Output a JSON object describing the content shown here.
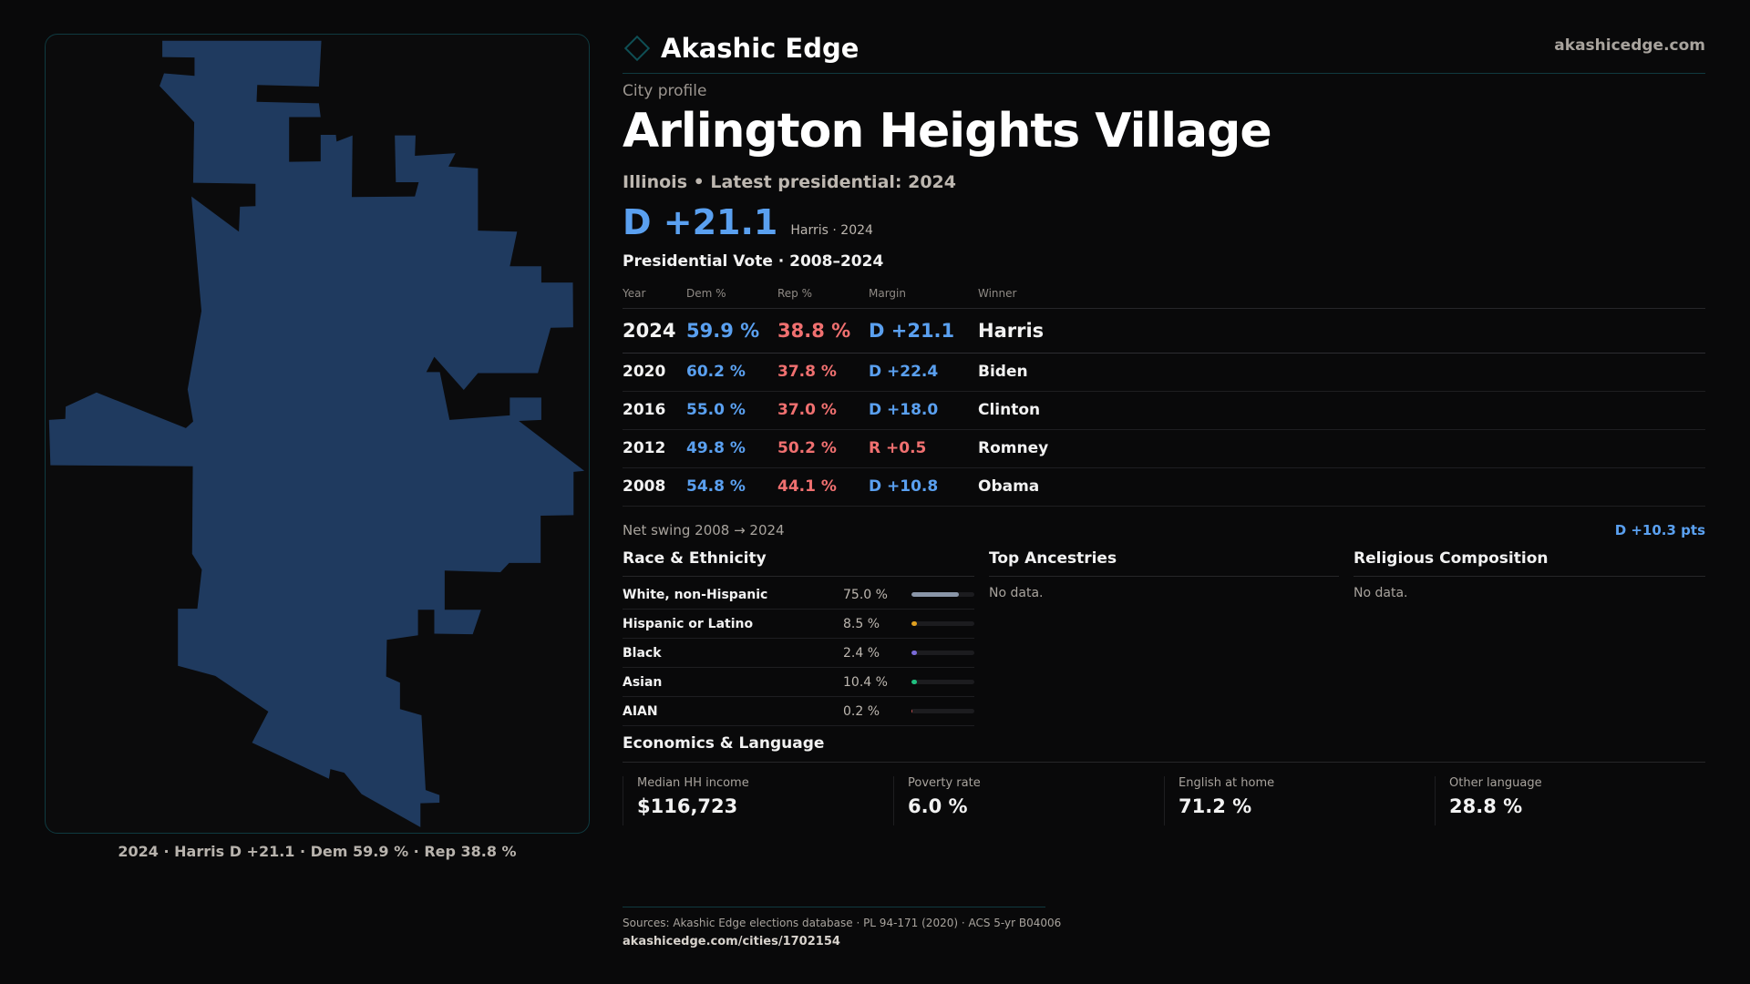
{
  "map": {
    "fill": "#1f3a5f",
    "caption": "2024 · Harris D +21.1 · Dem 59.9 % · Rep 38.8 %"
  },
  "header": {
    "brand": "Akashic Edge",
    "site": "akashicedge.com",
    "logo_icon": "diamond-icon"
  },
  "profile": {
    "kicker": "City profile",
    "title": "Arlington Heights Village",
    "subtitle": "Illinois • Latest presidential: 2024",
    "margin": "D +21.1",
    "margin_note": "Harris · 2024"
  },
  "votes": {
    "title": "Presidential Vote · 2008–2024",
    "headers": [
      "Year",
      "Dem %",
      "Rep %",
      "Margin",
      "Winner"
    ],
    "rows": [
      {
        "year": "2024",
        "dem": "59.9 %",
        "rep": "38.8 %",
        "margin": "D +21.1",
        "winner": "Harris",
        "party": "D"
      },
      {
        "year": "2020",
        "dem": "60.2 %",
        "rep": "37.8 %",
        "margin": "D +22.4",
        "winner": "Biden",
        "party": "D"
      },
      {
        "year": "2016",
        "dem": "55.0 %",
        "rep": "37.0 %",
        "margin": "D +18.0",
        "winner": "Clinton",
        "party": "D"
      },
      {
        "year": "2012",
        "dem": "49.8 %",
        "rep": "50.2 %",
        "margin": "R +0.5",
        "winner": "Romney",
        "party": "R"
      },
      {
        "year": "2008",
        "dem": "54.8 %",
        "rep": "44.1 %",
        "margin": "D +10.8",
        "winner": "Obama",
        "party": "D"
      }
    ],
    "swing_label": "Net swing 2008 → 2024",
    "swing_value": "D +10.3 pts"
  },
  "race": {
    "title": "Race & Ethnicity",
    "rows": [
      {
        "name": "White, non-Hispanic",
        "value": "75.0 %",
        "pct": 75.0,
        "color": "#8a96a8"
      },
      {
        "name": "Hispanic or Latino",
        "value": "8.5 %",
        "pct": 8.5,
        "color": "#e0a020"
      },
      {
        "name": "Black",
        "value": "2.4 %",
        "pct": 2.4,
        "color": "#7a6ad8"
      },
      {
        "name": "Asian",
        "value": "10.4 %",
        "pct": 10.4,
        "color": "#20c080"
      },
      {
        "name": "AIAN",
        "value": "0.2 %",
        "pct": 0.2,
        "color": "#c05050"
      }
    ]
  },
  "ancestries": {
    "title": "Top Ancestries",
    "empty": "No data."
  },
  "religion": {
    "title": "Religious Composition",
    "empty": "No data."
  },
  "economics": {
    "title": "Economics & Language",
    "stats": [
      {
        "label": "Median HH income",
        "value": "$116,723"
      },
      {
        "label": "Poverty rate",
        "value": "6.0 %"
      },
      {
        "label": "English at home",
        "value": "71.2 %"
      },
      {
        "label": "Other language",
        "value": "28.8 %"
      }
    ]
  },
  "footer": {
    "sources": "Sources: Akashic Edge elections database · PL 94-171 (2020) · ACS 5-yr B04006",
    "url": "akashicedge.com/cities/1702154"
  },
  "colors": {
    "dem": "#5aa0f0",
    "rep": "#f07070",
    "background": "#09090a"
  }
}
